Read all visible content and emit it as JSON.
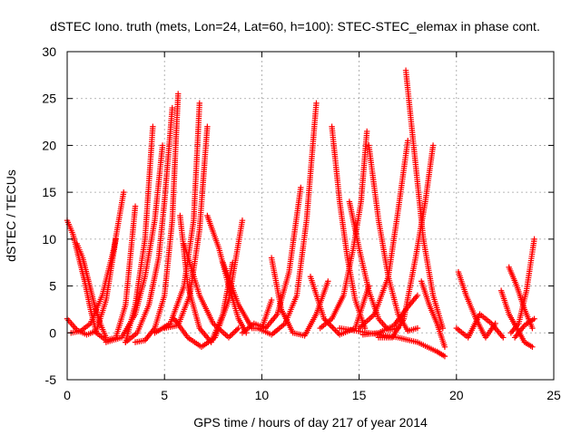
{
  "chart_data": {
    "type": "scatter",
    "title": "dSTEC Iono. truth (mets, Lon=24, Lat=60, h=100): STEC-STEC_elemax in phase cont.",
    "xlabel": "GPS time / hours of day 217 of year 2014",
    "ylabel": "dSTEC  / TECUs",
    "xlim": [
      0,
      25
    ],
    "ylim": [
      -5,
      30
    ],
    "xticks": [
      0,
      5,
      10,
      15,
      20,
      25
    ],
    "yticks": [
      -5,
      0,
      5,
      10,
      15,
      20,
      25,
      30
    ],
    "grid": true,
    "marker": "plus",
    "series_color": "#ff0000",
    "series": [
      {
        "x": [
          0.0,
          0.3,
          0.6,
          0.9,
          1.2,
          1.5
        ],
        "y": [
          12.0,
          10.5,
          8.0,
          5.5,
          2.5,
          0.0
        ]
      },
      {
        "x": [
          0.0,
          0.5,
          1.0,
          1.5,
          2.0,
          2.5
        ],
        "y": [
          1.5,
          0.3,
          -0.2,
          0.2,
          3.5,
          10.0
        ]
      },
      {
        "x": [
          0.5,
          0.8,
          1.1,
          1.4,
          1.7,
          2.0
        ],
        "y": [
          9.5,
          8.0,
          5.5,
          3.0,
          1.0,
          -0.5
        ]
      },
      {
        "x": [
          0.2,
          0.7,
          1.2,
          1.8,
          2.4,
          2.9
        ],
        "y": [
          0.0,
          0.2,
          1.0,
          4.0,
          9.0,
          15.0
        ]
      },
      {
        "x": [
          1.5,
          2.0,
          2.5,
          3.0,
          3.5
        ],
        "y": [
          0.0,
          -0.8,
          -0.5,
          3.0,
          13.5
        ]
      },
      {
        "x": [
          2.0,
          2.8,
          3.5,
          4.0,
          4.5,
          4.9
        ],
        "y": [
          -1.0,
          -0.5,
          2.0,
          6.0,
          12.0,
          20.0
        ]
      },
      {
        "x": [
          3.0,
          3.6,
          4.2,
          4.7,
          5.0,
          5.4
        ],
        "y": [
          -1.0,
          0.0,
          3.0,
          8.0,
          14.0,
          24.0
        ]
      },
      {
        "x": [
          3.5,
          4.0,
          4.5,
          5.0,
          5.4,
          5.7
        ],
        "y": [
          -1.0,
          -0.8,
          0.5,
          4.0,
          12.0,
          25.5
        ]
      },
      {
        "x": [
          3.0,
          3.5,
          4.0,
          4.2,
          4.4
        ],
        "y": [
          -1.0,
          3.0,
          10.0,
          16.0,
          22.0
        ]
      },
      {
        "x": [
          4.5,
          5.3,
          6.0,
          6.5,
          6.8
        ],
        "y": [
          0.0,
          1.0,
          5.0,
          12.0,
          24.5
        ]
      },
      {
        "x": [
          5.0,
          5.7,
          6.3,
          6.8,
          7.2
        ],
        "y": [
          0.5,
          0.8,
          4.0,
          11.0,
          22.0
        ]
      },
      {
        "x": [
          5.8,
          6.2,
          6.8,
          7.4,
          8.0,
          8.5
        ],
        "y": [
          12.5,
          5.0,
          0.5,
          -1.0,
          2.0,
          7.5
        ]
      },
      {
        "x": [
          5.5,
          6.2,
          6.9,
          7.6,
          8.3,
          9.0
        ],
        "y": [
          1.5,
          -0.5,
          -1.5,
          -0.5,
          3.5,
          12.0
        ]
      },
      {
        "x": [
          6.0,
          6.8,
          7.5,
          8.3,
          8.8
        ],
        "y": [
          9.5,
          4.0,
          1.0,
          -0.5,
          0.5
        ]
      },
      {
        "x": [
          7.2,
          7.8,
          8.3,
          8.8,
          9.2
        ],
        "y": [
          12.5,
          9.0,
          5.0,
          1.5,
          0.0
        ]
      },
      {
        "x": [
          8.0,
          8.8,
          9.5,
          10.0,
          10.5
        ],
        "y": [
          7.5,
          3.0,
          0.5,
          0.5,
          3.5
        ]
      },
      {
        "x": [
          9.0,
          9.6,
          10.2,
          10.8,
          11.4,
          12.0
        ],
        "y": [
          0.0,
          1.0,
          0.5,
          2.0,
          6.5,
          15.5
        ]
      },
      {
        "x": [
          9.8,
          10.5,
          11.2,
          11.8,
          12.3,
          12.8
        ],
        "y": [
          0.5,
          -0.2,
          1.0,
          4.0,
          12.0,
          24.5
        ]
      },
      {
        "x": [
          10.5,
          11.0,
          11.6,
          12.2,
          12.8,
          13.4
        ],
        "y": [
          8.0,
          2.5,
          0.0,
          -0.3,
          2.0,
          5.5
        ]
      },
      {
        "x": [
          12.5,
          13.2,
          14.0,
          14.8,
          15.5
        ],
        "y": [
          6.0,
          1.5,
          -0.2,
          0.5,
          5.0
        ]
      },
      {
        "x": [
          13.6,
          14.0,
          14.4,
          14.8,
          15.3
        ],
        "y": [
          22.0,
          14.0,
          8.0,
          3.5,
          0.5
        ]
      },
      {
        "x": [
          13.0,
          13.6,
          14.2,
          14.7,
          15.1,
          15.4
        ],
        "y": [
          0.5,
          1.5,
          4.0,
          9.0,
          14.0,
          21.5
        ]
      },
      {
        "x": [
          14.5,
          15.0,
          15.5,
          16.0,
          16.5,
          17.0
        ],
        "y": [
          14.0,
          9.0,
          4.5,
          1.5,
          0.3,
          0.5
        ]
      },
      {
        "x": [
          15.5,
          16.0,
          16.5,
          17.0,
          17.5,
          18.0
        ],
        "y": [
          20.0,
          12.0,
          6.0,
          2.0,
          0.2,
          0.5
        ]
      },
      {
        "x": [
          15.0,
          15.8,
          16.5,
          17.0,
          17.5
        ],
        "y": [
          0.5,
          2.0,
          6.0,
          13.0,
          20.5
        ]
      },
      {
        "x": [
          16.0,
          16.7,
          17.3,
          17.9,
          18.4,
          18.8
        ],
        "y": [
          -0.5,
          -0.5,
          1.5,
          8.0,
          14.0,
          20.0
        ]
      },
      {
        "x": [
          17.4,
          17.8,
          18.3,
          18.8,
          19.3
        ],
        "y": [
          28.0,
          20.0,
          10.0,
          4.0,
          0.5
        ]
      },
      {
        "x": [
          14.0,
          15.5,
          17.0,
          18.0,
          19.0,
          19.4
        ],
        "y": [
          0.5,
          0.0,
          -0.5,
          -1.0,
          -2.0,
          -2.5
        ]
      },
      {
        "x": [
          15.2,
          16.0,
          16.8,
          17.4,
          18.0
        ],
        "y": [
          -0.2,
          0.0,
          0.8,
          2.5,
          4.0
        ]
      },
      {
        "x": [
          18.2,
          18.6,
          19.0,
          19.4
        ],
        "y": [
          5.5,
          3.0,
          1.0,
          -1.5
        ]
      },
      {
        "x": [
          20.1,
          20.5,
          21.0,
          21.5,
          22.0
        ],
        "y": [
          6.5,
          4.0,
          1.5,
          -0.5,
          1.0
        ]
      },
      {
        "x": [
          20.0,
          20.6,
          21.2,
          21.8,
          22.4
        ],
        "y": [
          0.5,
          -0.5,
          2.0,
          1.0,
          -0.5
        ]
      },
      {
        "x": [
          22.3,
          22.7,
          23.1,
          23.5,
          23.9
        ],
        "y": [
          4.5,
          2.0,
          0.5,
          -1.0,
          -1.5
        ]
      },
      {
        "x": [
          22.7,
          23.1,
          23.5,
          23.9
        ],
        "y": [
          7.0,
          5.0,
          2.5,
          0.5
        ]
      },
      {
        "x": [
          22.8,
          23.2,
          23.6,
          24.0
        ],
        "y": [
          0.0,
          1.0,
          4.5,
          10.0
        ]
      },
      {
        "x": [
          23.0,
          23.5,
          24.0
        ],
        "y": [
          -0.5,
          0.8,
          1.5
        ]
      }
    ]
  }
}
